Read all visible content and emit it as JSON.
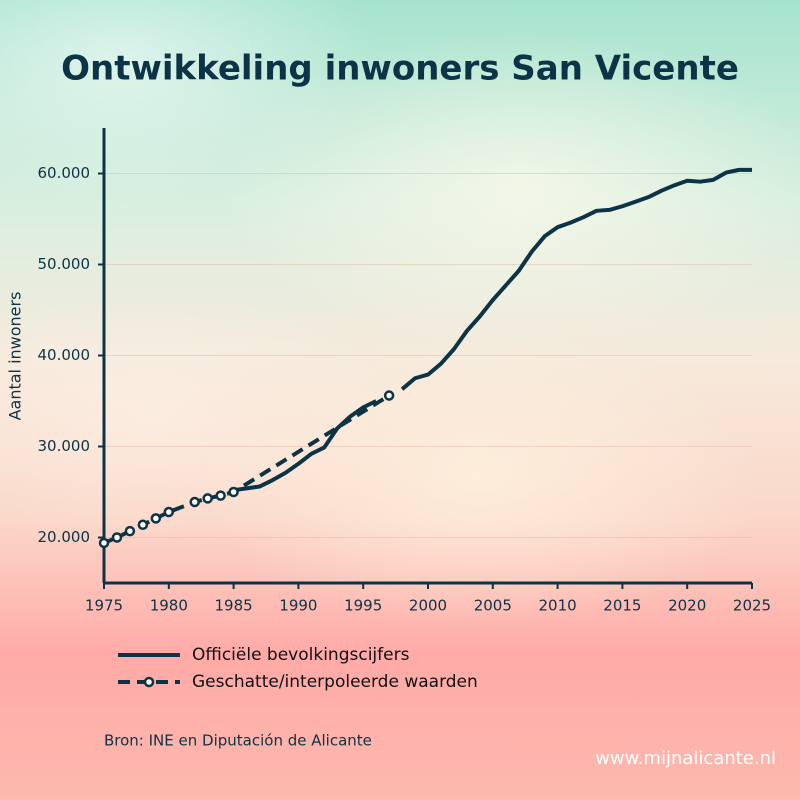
{
  "chart_data": {
    "type": "line",
    "title": "Ontwikkeling inwoners San Vicente",
    "y_label": "Aantal inwoners",
    "source": "Bron: INE en Diputación de Alicante",
    "watermark": "www.mijnalicante.nl",
    "xlim": [
      1975,
      2025
    ],
    "xticks": [
      1975,
      1980,
      1985,
      1990,
      1995,
      2000,
      2005,
      2010,
      2015,
      2020,
      2025
    ],
    "ylim": [
      15000,
      65000
    ],
    "yticks": [
      {
        "value": 20000,
        "label": "20.000"
      },
      {
        "value": 30000,
        "label": "30.000"
      },
      {
        "value": 40000,
        "label": "40.000"
      },
      {
        "value": 50000,
        "label": "50.000"
      },
      {
        "value": 60000,
        "label": "60.000"
      }
    ],
    "grid": true,
    "series": [
      {
        "name": "Officiële bevolkingscijfers",
        "color": "#0d3346",
        "style": "solid",
        "x": [
          1985,
          1986,
          1987,
          1988,
          1989,
          1990,
          1991,
          1992,
          1993,
          1994,
          1995,
          1996,
          1997,
          1998,
          1999,
          2000,
          2001,
          2002,
          2003,
          2004,
          2005,
          2006,
          2007,
          2008,
          2009,
          2010,
          2011,
          2012,
          2013,
          2014,
          2015,
          2016,
          2017,
          2018,
          2019,
          2020,
          2021,
          2022,
          2023,
          2024,
          2025
        ],
        "values": [
          25200,
          25400,
          25600,
          26300,
          27100,
          28100,
          29200,
          29900,
          32000,
          33300,
          34300,
          35000,
          null,
          36300,
          37500,
          37900,
          39100,
          40700,
          42700,
          44300,
          46100,
          47700,
          49300,
          51400,
          53100,
          54100,
          54600,
          55200,
          55900,
          56000,
          56400,
          56900,
          57400,
          58100,
          58700,
          59200,
          59100,
          59300,
          60100,
          60400,
          60400
        ]
      },
      {
        "name": "Geschatte/interpoleerde waarden",
        "color": "#0d3346",
        "style": "dashed",
        "x": [
          1975,
          1976,
          1977,
          1978,
          1979,
          1980,
          1982,
          1983,
          1984,
          1985,
          1997
        ],
        "values": [
          19400,
          20000,
          20700,
          21400,
          22100,
          22800,
          23900,
          24300,
          24600,
          25000,
          35600
        ]
      }
    ]
  }
}
